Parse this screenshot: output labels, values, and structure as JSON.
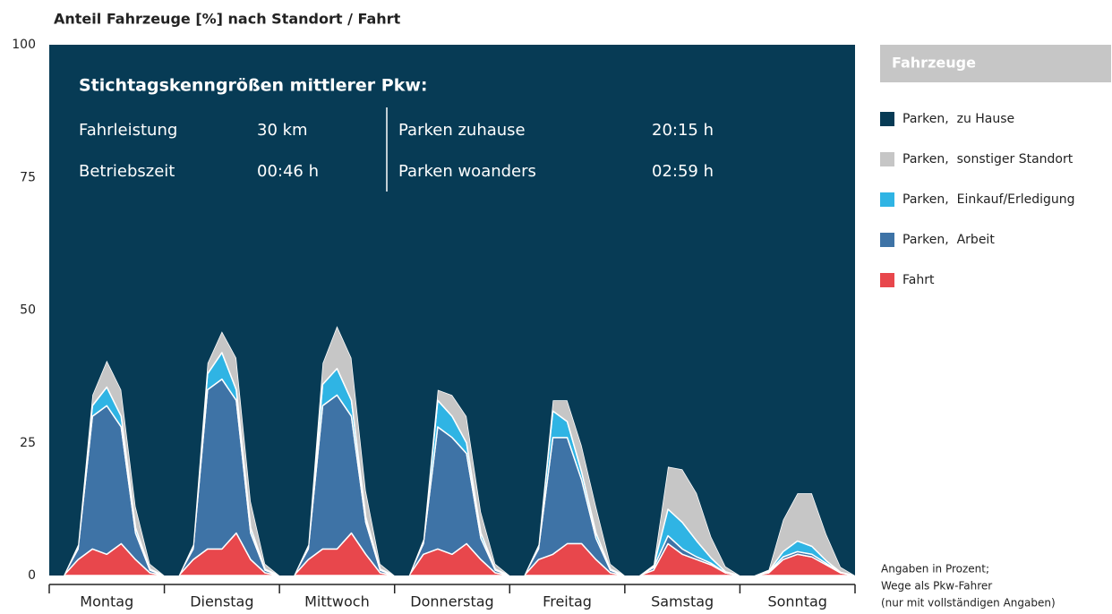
{
  "chart_data": {
    "type": "stacked_area",
    "title": "Anteil Fahrzeuge [%] nach Standort / Fahrt",
    "legend_title": "Fahrzeuge",
    "info": {
      "title": "Stichtagskenngrößen mittlerer Pkw:",
      "rows": [
        [
          "Fahrleistung",
          "30 km",
          "Parken zuhause",
          "20:15 h"
        ],
        [
          "Betriebszeit",
          "00:46 h",
          "Parken woanders",
          "02:59 h"
        ]
      ]
    },
    "notes": [
      "Angaben in Prozent;",
      "Wege als Pkw-Fahrer",
      "(nur mit vollständigen Angaben)"
    ],
    "categories": [
      "Montag",
      "Dienstag",
      "Mittwoch",
      "Donnerstag",
      "Freitag",
      "Samstag",
      "Sonntag"
    ],
    "x": [
      0,
      3,
      6,
      9,
      12,
      15,
      18,
      21,
      24,
      27,
      30,
      33,
      36,
      39,
      42,
      45,
      48,
      51,
      54,
      57,
      60,
      63,
      66,
      69,
      72,
      75,
      78,
      81,
      84,
      87,
      90,
      93,
      96,
      99,
      102,
      105,
      108,
      111,
      114,
      117,
      120,
      123,
      126,
      129,
      132,
      135,
      138,
      141,
      144,
      147,
      150,
      153,
      156,
      159,
      162,
      165,
      168
    ],
    "xlim": [
      0,
      168
    ],
    "xticks": [
      0,
      24,
      48,
      72,
      96,
      120,
      144,
      168
    ],
    "ylim": [
      0,
      100
    ],
    "yticks": [
      0,
      25,
      50,
      75,
      100
    ],
    "series": [
      {
        "name": "Parken,  zu Hause",
        "color": "#073b55",
        "values": [
          100,
          100,
          94.2,
          66,
          59.5,
          65,
          87,
          97.8,
          100,
          100,
          94.2,
          60,
          54,
          59,
          86,
          97.8,
          100,
          100,
          94.2,
          60,
          53,
          59,
          84,
          97.8,
          100,
          100,
          93.2,
          65,
          66,
          70,
          88,
          97.8,
          100,
          100,
          94.2,
          67,
          67,
          75.5,
          87,
          97.8,
          100,
          100,
          98,
          79.5,
          80,
          84.5,
          92.7,
          98.3,
          100,
          100,
          98.9,
          89.5,
          84.5,
          84.5,
          92.2,
          98.4,
          100
        ]
      },
      {
        "name": "Parken,  sonstiger Standort",
        "color": "#c6c6c6",
        "values": [
          0,
          0,
          0.5,
          2,
          5,
          5,
          4,
          1,
          0,
          0,
          0.5,
          2,
          4,
          6,
          5,
          1,
          0,
          0,
          0.5,
          4,
          8,
          8,
          5,
          1,
          0,
          0,
          0.5,
          2,
          4,
          5,
          4,
          1,
          0,
          0,
          0.5,
          2,
          4,
          5,
          5,
          1,
          0,
          0,
          0.3,
          8,
          10,
          9,
          4,
          1,
          0,
          0,
          0.3,
          6,
          9,
          10,
          5,
          1,
          0
        ]
      },
      {
        "name": "Parken,  Einkauf/Erledigung",
        "color": "#2fb4e4",
        "values": [
          0,
          0,
          0.3,
          2,
          3.5,
          2,
          1,
          0.2,
          0,
          0,
          0.3,
          3,
          5,
          2,
          1,
          0.2,
          0,
          0,
          0.3,
          4,
          5,
          3,
          1,
          0.2,
          0,
          0,
          0.3,
          5,
          4,
          2,
          1,
          0.2,
          0,
          0,
          0.3,
          5,
          3,
          1.5,
          1,
          0.2,
          0,
          0,
          0.2,
          5,
          5,
          3,
          1,
          0.2,
          0,
          0,
          0.1,
          1,
          2,
          1.5,
          0.5,
          0.1,
          0
        ]
      },
      {
        "name": "Parken,  Arbeit",
        "color": "#3e73a6",
        "values": [
          0,
          0,
          2,
          25,
          28,
          22,
          5,
          0.5,
          0,
          0,
          2,
          30,
          32,
          25,
          5,
          0.5,
          0,
          0,
          2,
          27,
          29,
          22,
          6,
          0.5,
          0,
          0,
          2,
          23,
          22,
          17,
          4,
          0.5,
          0,
          0,
          2,
          22,
          20,
          12,
          4,
          0.5,
          0,
          0,
          0.5,
          1.5,
          1,
          0.5,
          0.3,
          0,
          0,
          0,
          0.2,
          0.5,
          0.5,
          0.5,
          0.3,
          0,
          0
        ]
      },
      {
        "name": "Fahrt",
        "color": "#e8474c",
        "values": [
          0,
          0,
          3,
          5,
          4,
          6,
          3,
          0.5,
          0,
          0,
          3,
          5,
          5,
          8,
          3,
          0.5,
          0,
          0,
          3,
          5,
          5,
          8,
          4,
          0.5,
          0,
          0,
          4,
          5,
          4,
          6,
          3,
          0.5,
          0,
          0,
          3,
          4,
          6,
          6,
          3,
          0.5,
          0,
          0,
          1,
          6,
          4,
          3,
          2,
          0.5,
          0,
          0,
          0.5,
          3,
          4,
          3.5,
          2,
          0.5,
          0
        ]
      }
    ]
  }
}
